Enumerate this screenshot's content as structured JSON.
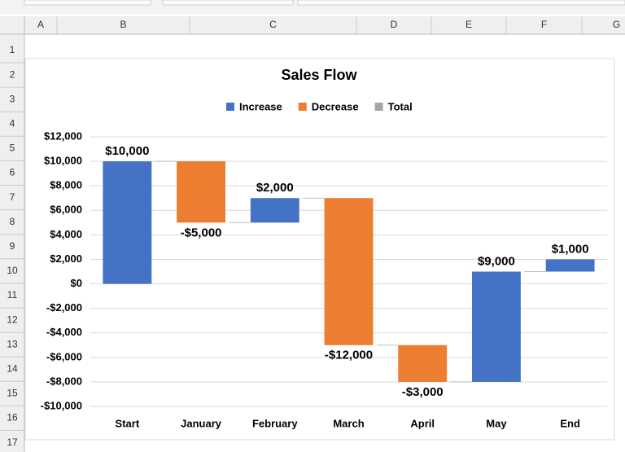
{
  "sheet": {
    "columns": [
      "A",
      "B",
      "C",
      "D",
      "E",
      "F",
      "G"
    ],
    "rows": [
      1,
      2,
      3,
      4,
      5,
      6,
      7,
      8,
      9,
      10,
      11,
      12,
      13,
      14,
      15,
      16,
      17
    ]
  },
  "chart_data": {
    "type": "waterfall",
    "title": "Sales Flow",
    "categories": [
      "Start",
      "January",
      "February",
      "March",
      "April",
      "May",
      "End"
    ],
    "values": [
      10000,
      -5000,
      2000,
      -12000,
      -3000,
      9000,
      1000
    ],
    "value_labels": [
      "$10,000",
      "-$5,000",
      "$2,000",
      "-$12,000",
      "-$3,000",
      "$9,000",
      "$1,000"
    ],
    "legend": [
      {
        "name": "Increase",
        "color": "#4472c4"
      },
      {
        "name": "Decrease",
        "color": "#ed7d31"
      },
      {
        "name": "Total",
        "color": "#a5a5a5"
      }
    ],
    "ylim": [
      -10000,
      12000
    ],
    "yticks": [
      {
        "value": -10000,
        "label": "-$10,000"
      },
      {
        "value": -8000,
        "label": "-$8,000"
      },
      {
        "value": -6000,
        "label": "-$6,000"
      },
      {
        "value": -4000,
        "label": "-$4,000"
      },
      {
        "value": -2000,
        "label": "-$2,000"
      },
      {
        "value": 0,
        "label": "$0"
      },
      {
        "value": 2000,
        "label": "$2,000"
      },
      {
        "value": 4000,
        "label": "$4,000"
      },
      {
        "value": 6000,
        "label": "$6,000"
      },
      {
        "value": 8000,
        "label": "$8,000"
      },
      {
        "value": 10000,
        "label": "$10,000"
      },
      {
        "value": 12000,
        "label": "$12,000"
      }
    ],
    "grid": true
  }
}
